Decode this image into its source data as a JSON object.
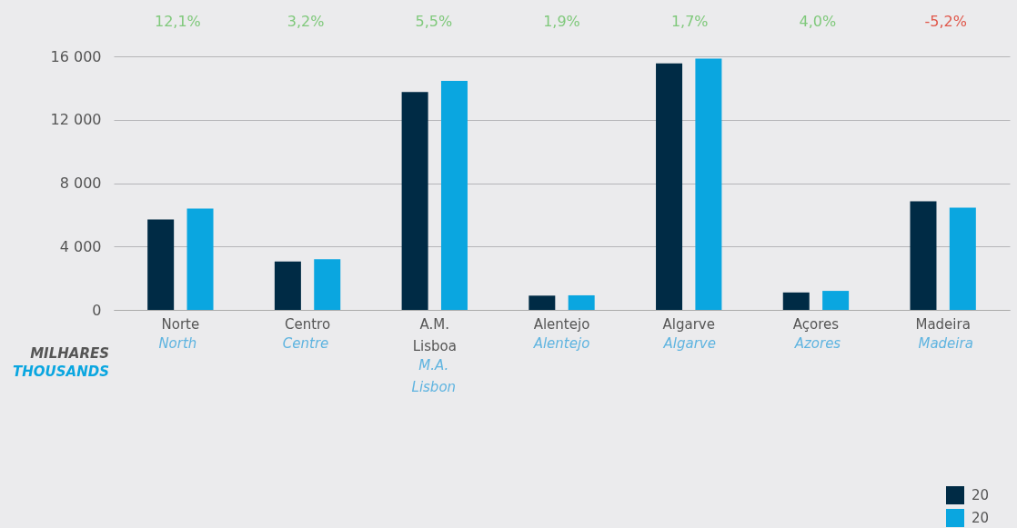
{
  "chart_data": {
    "type": "bar",
    "categories": [
      "Norte",
      "Centro",
      "A.M.\nLisboa",
      "Alentejo",
      "Algarve",
      "Açores",
      "Madeira"
    ],
    "series": [
      {
        "name": "20",
        "color": "#002b45",
        "values": [
          5700,
          3050,
          13750,
          900,
          15550,
          1100,
          6850
        ]
      },
      {
        "name": "20",
        "color": "#0aa6e0",
        "values": [
          6400,
          3200,
          14450,
          920,
          15850,
          1200,
          6450
        ]
      }
    ],
    "ylim": [
      0,
      16000
    ],
    "yticks": [
      0,
      {
        "value": 4000,
        "label": "4 000"
      },
      {
        "value": 8000,
        "label": "8 000"
      },
      {
        "value": 12000,
        "label": "12 000"
      },
      {
        "value": 16000,
        "label": "16 000"
      }
    ],
    "ylabel": "MILHARES",
    "annotations": [
      "12,1%",
      "3,2%",
      "5,5%",
      "1,9%",
      "1,7%",
      "4,0%",
      "-5,2%",
      "North",
      "Centre",
      "M.A.\nLisbon",
      "Alentejo",
      "Algarve",
      "Azores",
      "Madeira",
      "THOUSANDS"
    ],
    "grid": "y",
    "legend": "bottom right"
  }
}
